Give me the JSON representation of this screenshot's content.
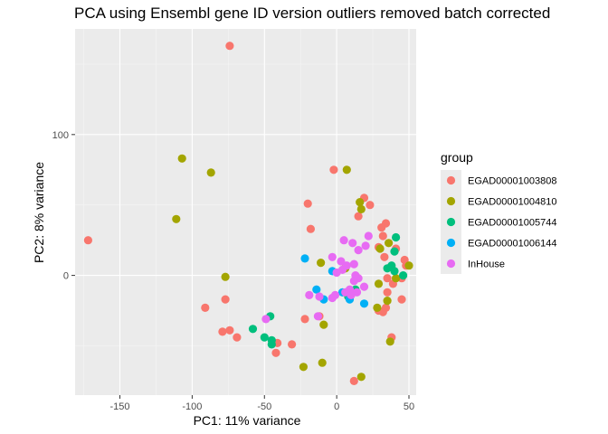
{
  "chart_data": {
    "type": "scatter",
    "title": "PCA using Ensembl gene ID version outliers removed batch corrected",
    "xlabel": "PC1: 11% variance",
    "ylabel": "PC2: 8% variance",
    "xlim": [
      -181,
      55
    ],
    "ylim": [
      -85,
      175
    ],
    "xticks": [
      -150,
      -100,
      -50,
      0,
      50
    ],
    "xtick_labels": [
      "-150",
      "-100",
      "-50",
      "0",
      "50"
    ],
    "yticks": [
      0,
      100
    ],
    "ytick_labels": [
      "0",
      "100"
    ],
    "grid": true,
    "legend_position": "right",
    "legend_title": "group",
    "series": [
      {
        "name": "EGAD00001003808",
        "color": "#F8766D",
        "points": [
          [
            -74,
            163
          ],
          [
            -172,
            25
          ],
          [
            -2,
            75
          ],
          [
            -20,
            51
          ],
          [
            19,
            55
          ],
          [
            23,
            50
          ],
          [
            15,
            42
          ],
          [
            -18,
            33
          ],
          [
            34,
            37
          ],
          [
            31,
            34
          ],
          [
            41,
            19
          ],
          [
            47,
            11
          ],
          [
            33,
            13
          ],
          [
            48,
            7
          ],
          [
            35,
            -2
          ],
          [
            39,
            -6
          ],
          [
            45,
            -2
          ],
          [
            35,
            -12
          ],
          [
            -77,
            -17
          ],
          [
            -91,
            -23
          ],
          [
            -22,
            -31
          ],
          [
            -12,
            -29
          ],
          [
            -79,
            -40
          ],
          [
            -74,
            -39
          ],
          [
            -69,
            -44
          ],
          [
            -41,
            -48
          ],
          [
            -31,
            -49
          ],
          [
            -42,
            -55
          ],
          [
            12,
            -75
          ],
          [
            29,
            -25
          ],
          [
            32,
            -26
          ],
          [
            34,
            -23
          ],
          [
            45,
            -17
          ],
          [
            38,
            -44
          ],
          [
            32,
            28
          ],
          [
            29,
            20
          ]
        ]
      },
      {
        "name": "EGAD00001004810",
        "color": "#A3A500",
        "points": [
          [
            -107,
            83
          ],
          [
            -87,
            73
          ],
          [
            -111,
            40
          ],
          [
            -77,
            -1
          ],
          [
            7,
            75
          ],
          [
            16,
            52
          ],
          [
            17,
            47
          ],
          [
            -11,
            9
          ],
          [
            6,
            5
          ],
          [
            30,
            19
          ],
          [
            36,
            23
          ],
          [
            29,
            -6
          ],
          [
            35,
            -18
          ],
          [
            28,
            -23
          ],
          [
            50,
            7
          ],
          [
            -9,
            -35
          ],
          [
            -10,
            -62
          ],
          [
            -23,
            -65
          ],
          [
            17,
            -72
          ],
          [
            37,
            -47
          ],
          [
            41,
            -2
          ]
        ]
      },
      {
        "name": "EGAD00001005744",
        "color": "#00BF7D",
        "points": [
          [
            41,
            27
          ],
          [
            40,
            17
          ],
          [
            38,
            7
          ],
          [
            35,
            5
          ],
          [
            46,
            0
          ],
          [
            -58,
            -38
          ],
          [
            -50,
            -44
          ],
          [
            -46,
            -29
          ],
          [
            -45,
            -46
          ],
          [
            -45,
            -49
          ],
          [
            8,
            -15
          ],
          [
            13,
            -10
          ],
          [
            40,
            3
          ]
        ]
      },
      {
        "name": "EGAD00001006144",
        "color": "#00B0F6",
        "points": [
          [
            -22,
            12
          ],
          [
            -3,
            3
          ],
          [
            -14,
            -10
          ],
          [
            -9,
            -17
          ],
          [
            9,
            -17
          ],
          [
            19,
            -20
          ],
          [
            4,
            -12
          ]
        ]
      },
      {
        "name": "InHouse",
        "color": "#E76BF3",
        "points": [
          [
            5,
            25
          ],
          [
            11,
            23
          ],
          [
            22,
            28
          ],
          [
            20,
            21
          ],
          [
            -3,
            13
          ],
          [
            3,
            10
          ],
          [
            12,
            8
          ],
          [
            15,
            18
          ],
          [
            0,
            2
          ],
          [
            4,
            4
          ],
          [
            13,
            0
          ],
          [
            15,
            -2
          ],
          [
            19,
            -8
          ],
          [
            14,
            -12
          ],
          [
            9,
            -10
          ],
          [
            6,
            -12
          ],
          [
            10,
            -14
          ],
          [
            -1,
            -14
          ],
          [
            -3,
            -16
          ],
          [
            -12,
            -15
          ],
          [
            -19,
            -14
          ],
          [
            -49,
            -31
          ],
          [
            -13,
            -29
          ],
          [
            7,
            7
          ],
          [
            12,
            -4
          ]
        ]
      }
    ]
  }
}
